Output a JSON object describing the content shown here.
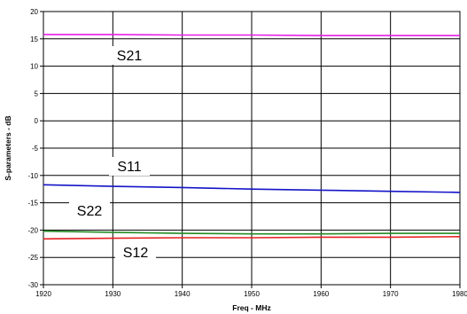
{
  "chart_data": {
    "type": "line",
    "title": "",
    "xlabel": "Freq - MHz",
    "ylabel": "S-parameters - dB",
    "xlim": [
      1920,
      1980
    ],
    "ylim": [
      -30,
      20
    ],
    "x_ticks": [
      "1920",
      "1930",
      "1940",
      "1950",
      "1960",
      "1970",
      "1980"
    ],
    "y_ticks": [
      "20",
      "15",
      "10",
      "5",
      "0",
      "-5",
      "-10",
      "-15",
      "-20",
      "-25",
      "-30"
    ],
    "grid": true,
    "legend": "none",
    "series": [
      {
        "name": "S21",
        "color": "#e61ee6",
        "x": [
          1920,
          1930,
          1940,
          1950,
          1960,
          1970,
          1980
        ],
        "y": [
          15.8,
          15.8,
          15.7,
          15.7,
          15.6,
          15.6,
          15.6
        ]
      },
      {
        "name": "S11",
        "color": "#1414c8",
        "x": [
          1920,
          1930,
          1940,
          1950,
          1960,
          1970,
          1980
        ],
        "y": [
          -11.7,
          -12.0,
          -12.2,
          -12.5,
          -12.7,
          -12.9,
          -13.1
        ]
      },
      {
        "name": "S22",
        "color": "#228b22",
        "x": [
          1920,
          1930,
          1940,
          1950,
          1960,
          1970,
          1980
        ],
        "y": [
          -20.2,
          -20.4,
          -20.6,
          -20.7,
          -20.7,
          -20.6,
          -20.6
        ]
      },
      {
        "name": "S12",
        "color": "#e62020",
        "x": [
          1920,
          1930,
          1940,
          1950,
          1960,
          1970,
          1980
        ],
        "y": [
          -21.6,
          -21.5,
          -21.4,
          -21.4,
          -21.3,
          -21.3,
          -21.2
        ]
      }
    ],
    "annotations": [
      {
        "text": "S21",
        "series": "S21"
      },
      {
        "text": "S11",
        "series": "S11"
      },
      {
        "text": "S22",
        "series": "S22"
      },
      {
        "text": "S12",
        "series": "S12"
      }
    ]
  }
}
